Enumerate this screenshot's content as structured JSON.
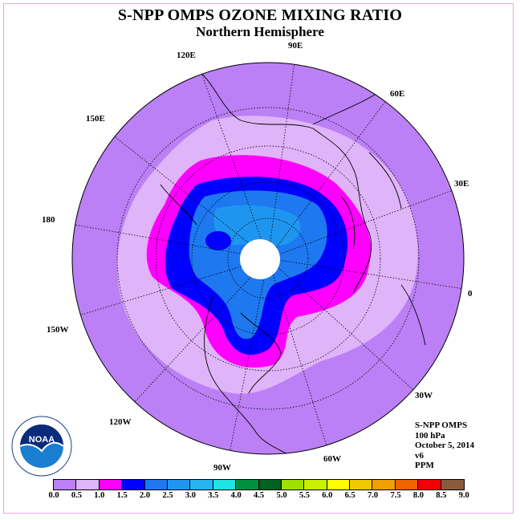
{
  "title": "S-NPP OMPS OZONE MIXING RATIO",
  "subtitle": "Northern Hemisphere",
  "longitude_labels": [
    "90E",
    "60E",
    "30E",
    "0",
    "30W",
    "60W",
    "90W",
    "120W",
    "150W",
    "180",
    "150E",
    "120E"
  ],
  "info": {
    "instrument": "S-NPP OMPS",
    "level": "100 hPa",
    "date": "October 5, 2014",
    "version": "v6",
    "units": "PPM"
  },
  "colorbar": {
    "ticks": [
      "0.0",
      "0.5",
      "1.0",
      "1.5",
      "2.0",
      "2.5",
      "3.0",
      "3.5",
      "4.0",
      "4.5",
      "5.0",
      "5.5",
      "6.0",
      "6.5",
      "7.0",
      "7.5",
      "8.0",
      "8.5",
      "9.0"
    ],
    "colors": [
      "#bb80f5",
      "#e0b4f8",
      "#ff00ff",
      "#0000ff",
      "#1e78f0",
      "#1e96f0",
      "#28b4f0",
      "#20e4e4",
      "#009040",
      "#006020",
      "#a0e000",
      "#c8f000",
      "#ffff00",
      "#f0c800",
      "#f0a000",
      "#f06400",
      "#f00000",
      "#8a5a3c"
    ]
  },
  "logo_text": "NOAA",
  "map_colors": {
    "outer": "#bb80f5",
    "light": "#e0b4f8",
    "magenta": "#ff00ff",
    "blue": "#0000ff",
    "mid": "#1e78f0",
    "light_blue": "#1e96f0",
    "pole": "#ffffff"
  }
}
